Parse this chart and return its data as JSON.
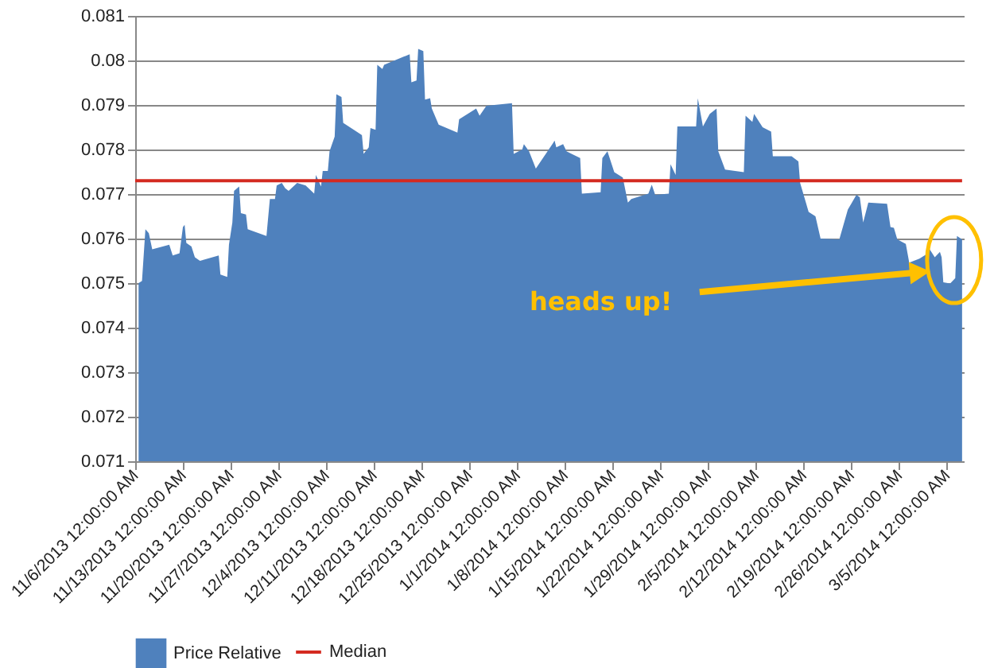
{
  "chart_data": {
    "type": "area",
    "grid": "y",
    "legend": "bottom",
    "xlim": [
      "2013-11-06",
      "2014-03-07T12:00"
    ],
    "ylim": [
      0.071,
      0.081
    ],
    "yticks": [
      0.071,
      0.072,
      0.073,
      0.074,
      0.075,
      0.076,
      0.077,
      0.078,
      0.079,
      0.08,
      0.081
    ],
    "xticks": [
      {
        "value": "2013-11-06",
        "label": "11/6/2013 12:00:00 AM"
      },
      {
        "value": "2013-11-13",
        "label": "11/13/2013 12:00:00 AM"
      },
      {
        "value": "2013-11-20",
        "label": "11/20/2013 12:00:00 AM"
      },
      {
        "value": "2013-11-27",
        "label": "11/27/2013 12:00:00 AM"
      },
      {
        "value": "2013-12-04",
        "label": "12/4/2013 12:00:00 AM"
      },
      {
        "value": "2013-12-11",
        "label": "12/11/2013 12:00:00 AM"
      },
      {
        "value": "2013-12-18",
        "label": "12/18/2013 12:00:00 AM"
      },
      {
        "value": "2013-12-25",
        "label": "12/25/2013 12:00:00 AM"
      },
      {
        "value": "2014-01-01",
        "label": "1/1/2014 12:00:00 AM"
      },
      {
        "value": "2014-01-08",
        "label": "1/8/2014 12:00:00 AM"
      },
      {
        "value": "2014-01-15",
        "label": "1/15/2014 12:00:00 AM"
      },
      {
        "value": "2014-01-22",
        "label": "1/22/2014 12:00:00 AM"
      },
      {
        "value": "2014-01-29",
        "label": "1/29/2014 12:00:00 AM"
      },
      {
        "value": "2014-02-05",
        "label": "2/5/2014 12:00:00 AM"
      },
      {
        "value": "2014-02-12",
        "label": "2/12/2014 12:00:00 AM"
      },
      {
        "value": "2014-02-19",
        "label": "2/19/2014 12:00:00 AM"
      },
      {
        "value": "2014-02-26",
        "label": "2/26/2014 12:00:00 AM"
      },
      {
        "value": "2014-03-05",
        "label": "3/5/2014 12:00:00 AM"
      }
    ],
    "annotations": [
      "heads up!"
    ],
    "series": [
      {
        "name": "Price Relative",
        "color": "#4f81bd",
        "x": [
          "2013-11-06T12:00",
          "2013-11-07",
          "2013-11-07T12:00",
          "2013-11-08",
          "2013-11-08T12:00",
          "2013-11-11",
          "2013-11-11T12:00",
          "2013-11-12T12:00",
          "2013-11-13",
          "2013-11-13T06:00",
          "2013-11-13T12:00",
          "2013-11-14T06:00",
          "2013-11-14T18:00",
          "2013-11-15T12:00",
          "2013-11-18T06:00",
          "2013-11-18T12:00",
          "2013-11-19T12:00",
          "2013-11-19T18:00",
          "2013-11-20T06:00",
          "2013-11-20T12:00",
          "2013-11-21T06:00",
          "2013-11-21T12:00",
          "2013-11-22T06:00",
          "2013-11-22T12:00",
          "2013-11-25T06:00",
          "2013-11-25T18:00",
          "2013-11-26T12:00",
          "2013-11-26T18:00",
          "2013-11-27T12:00",
          "2013-11-28",
          "2013-11-28T12:00",
          "2013-11-29T18:00",
          "2013-12-01",
          "2013-12-02T06:00",
          "2013-12-02T12:00",
          "2013-12-03T06:00",
          "2013-12-03T12:00",
          "2013-12-04T06:00",
          "2013-12-04T12:00",
          "2013-12-05T06:00",
          "2013-12-05T12:00",
          "2013-12-06T06:00",
          "2013-12-06T12:00",
          "2013-12-09",
          "2013-12-09T06:00",
          "2013-12-09T12:00",
          "2013-12-10T06:00",
          "2013-12-10T12:00",
          "2013-12-11T06:00",
          "2013-12-11T12:00",
          "2013-12-12T06:00",
          "2013-12-12T12:00",
          "2013-12-16T06:00",
          "2013-12-16T12:00",
          "2013-12-17T06:00",
          "2013-12-17T12:00",
          "2013-12-18T06:00",
          "2013-12-18T12:00",
          "2013-12-19T06:00",
          "2013-12-19T12:00",
          "2013-12-20T12:00",
          "2013-12-23T06:00",
          "2013-12-23T12:00",
          "2013-12-26",
          "2013-12-26T12:00",
          "2013-12-27T12:00",
          "2013-12-31T06:00",
          "2013-12-31T12:00",
          "2014-01-01T18:00",
          "2014-01-02",
          "2014-01-02T18:00",
          "2014-01-03T18:00",
          "2014-01-06T06:00",
          "2014-01-06T12:00",
          "2014-01-06T18:00",
          "2014-01-07T18:00",
          "2014-01-08T06:00",
          "2014-01-09",
          "2014-01-10T06:00",
          "2014-01-10T12:00",
          "2014-01-13T06:00",
          "2014-01-13T12:00",
          "2014-01-14T06:00",
          "2014-01-15T06:00",
          "2014-01-16T12:00",
          "2014-01-17T06:00",
          "2014-01-17T18:00",
          "2014-01-20T06:00",
          "2014-01-20T18:00",
          "2014-01-21T06:00",
          "2014-01-23T06:00",
          "2014-01-23T12:00",
          "2014-01-24T06:00",
          "2014-01-24T12:00",
          "2014-01-27T06:00",
          "2014-01-27T12:00",
          "2014-01-28T06:00",
          "2014-01-29T06:00",
          "2014-01-30T06:00",
          "2014-01-30T12:00",
          "2014-01-31T12:00",
          "2014-02-03T06:00",
          "2014-02-03T12:00",
          "2014-02-04T12:00",
          "2014-02-04T18:00",
          "2014-02-06",
          "2014-02-07T06:00",
          "2014-02-07T12:00",
          "2014-02-10T06:00",
          "2014-02-11T06:00",
          "2014-02-11T12:00",
          "2014-02-12T18:00",
          "2014-02-13T18:00",
          "2014-02-14T12:00",
          "2014-02-17T06:00",
          "2014-02-18T12:00",
          "2014-02-19T18:00",
          "2014-02-20T06:00",
          "2014-02-20T18:00",
          "2014-02-21T12:00",
          "2014-02-24T06:00",
          "2014-02-24T18:00",
          "2014-02-25T06:00",
          "2014-02-25T18:00",
          "2014-02-27",
          "2014-02-27T12:00",
          "2014-03-01",
          "2014-03-02T06:00",
          "2014-03-02T12:00",
          "2014-03-03T06:00",
          "2014-03-04",
          "2014-03-04T06:00",
          "2014-03-04T12:00",
          "2014-03-05T12:00",
          "2014-03-06T06:00",
          "2014-03-06T12:00",
          "2014-03-07T06:00"
        ],
        "values": [
          0.075,
          0.07505,
          0.07621,
          0.07612,
          0.07576,
          0.07586,
          0.07562,
          0.07567,
          0.07626,
          0.07631,
          0.0759,
          0.07582,
          0.07558,
          0.0755,
          0.07562,
          0.07519,
          0.07514,
          0.07586,
          0.07636,
          0.07707,
          0.07717,
          0.07657,
          0.07654,
          0.07621,
          0.07606,
          0.07689,
          0.07689,
          0.07719,
          0.07725,
          0.07713,
          0.07707,
          0.07725,
          0.07719,
          0.07701,
          0.07743,
          0.07717,
          0.07752,
          0.07752,
          0.07796,
          0.07829,
          0.07924,
          0.07918,
          0.0786,
          0.07835,
          0.07832,
          0.0779,
          0.07805,
          0.07848,
          0.07844,
          0.0799,
          0.07981,
          0.0799,
          0.08014,
          0.07951,
          0.07955,
          0.08026,
          0.08021,
          0.07912,
          0.07915,
          0.07892,
          0.07856,
          0.07838,
          0.07868,
          0.07892,
          0.07876,
          0.07898,
          0.07904,
          0.0779,
          0.078,
          0.07812,
          0.07796,
          0.07757,
          0.07814,
          0.0782,
          0.07805,
          0.07812,
          0.07796,
          0.0779,
          0.07781,
          0.07701,
          0.07704,
          0.07781,
          0.07796,
          0.07749,
          0.07737,
          0.07681,
          0.07689,
          0.07701,
          0.07721,
          0.07698,
          0.07701,
          0.07767,
          0.07743,
          0.07852,
          0.07852,
          0.07915,
          0.07852,
          0.0788,
          0.07892,
          0.07796,
          0.07755,
          0.07749,
          0.07876,
          0.07862,
          0.0788,
          0.0785,
          0.0784,
          0.07785,
          0.07785,
          0.07773,
          0.07725,
          0.0766,
          0.0765,
          0.076,
          0.07598,
          0.07665,
          0.07698,
          0.07693,
          0.07636,
          0.07681,
          0.07678,
          0.07626,
          0.07624,
          0.07598,
          0.07588,
          0.07546,
          0.07555,
          0.07567,
          0.07576,
          0.07558,
          0.0757,
          0.07558,
          0.07502,
          0.07499,
          0.07511,
          0.07606,
          0.07598
        ]
      },
      {
        "name": "Median",
        "type": "line",
        "color": "#d42a20",
        "x": [
          "2013-11-06",
          "2014-03-07T06:00"
        ],
        "values": [
          0.0773,
          0.0773
        ]
      }
    ]
  }
}
